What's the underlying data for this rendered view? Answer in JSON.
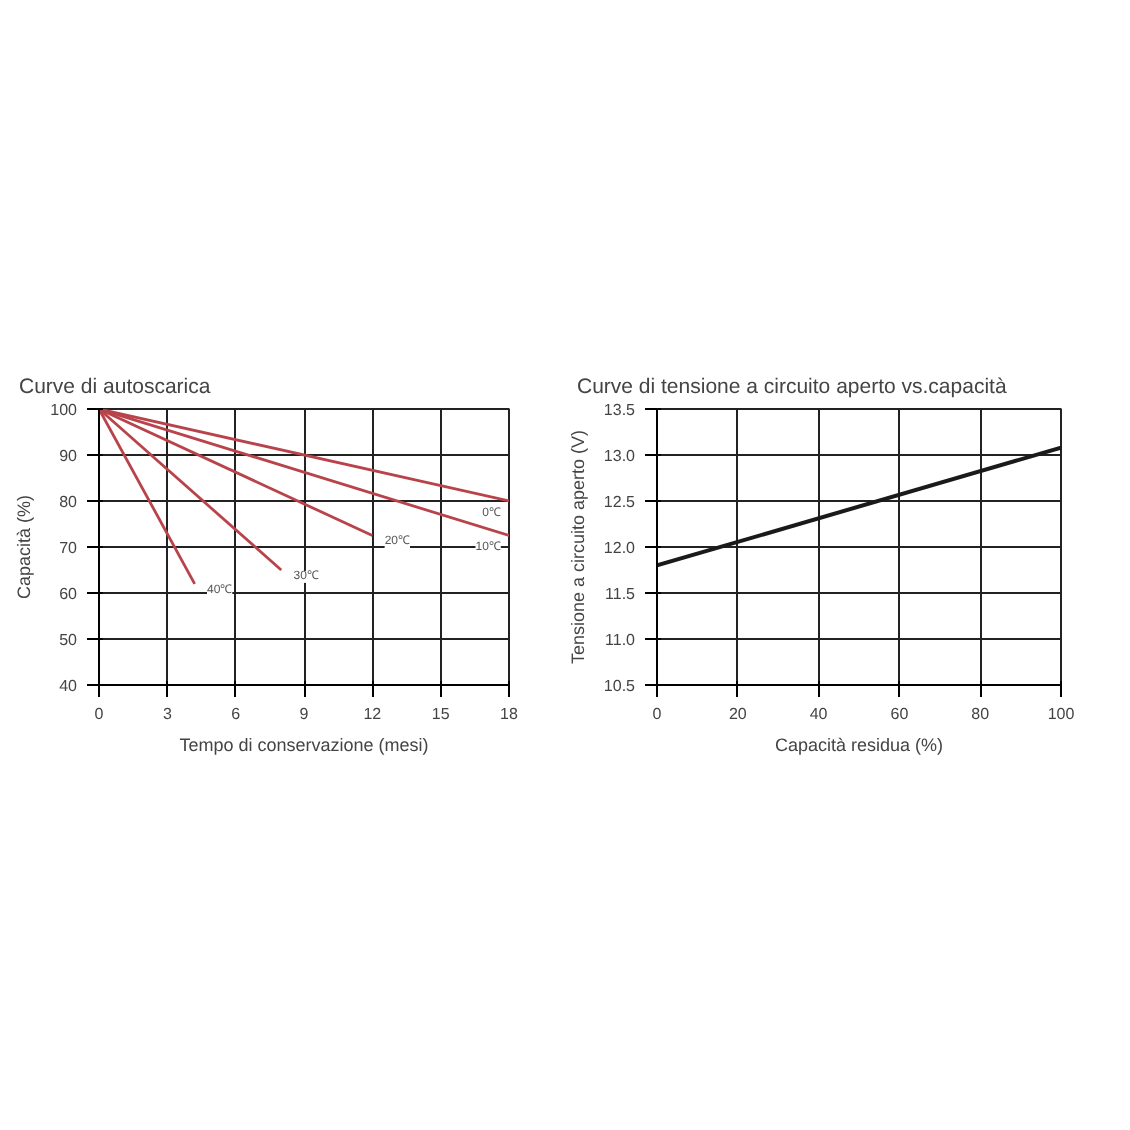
{
  "chart_data": [
    {
      "type": "line",
      "title": "Curve di autoscarica",
      "xlabel": "Tempo di conservazione (mesi)",
      "ylabel": "Capacità (%)",
      "xlim": [
        0,
        18
      ],
      "ylim": [
        40,
        100
      ],
      "xticks": [
        0,
        3,
        6,
        9,
        12,
        15,
        18
      ],
      "yticks": [
        40,
        50,
        60,
        70,
        80,
        90,
        100
      ],
      "grid": true,
      "marker": "none",
      "line_style": "solid",
      "series": [
        {
          "name": "0℃",
          "color": "#b8434a",
          "x": [
            0,
            18
          ],
          "values": [
            100,
            80
          ]
        },
        {
          "name": "10℃",
          "color": "#b8434a",
          "x": [
            0,
            18
          ],
          "values": [
            100,
            72.5
          ]
        },
        {
          "name": "20℃",
          "color": "#b8434a",
          "x": [
            0,
            12
          ],
          "values": [
            100,
            72.5
          ]
        },
        {
          "name": "30℃",
          "color": "#b8434a",
          "x": [
            0,
            8
          ],
          "values": [
            100,
            65
          ]
        },
        {
          "name": "40℃",
          "color": "#b8434a",
          "x": [
            0,
            4.2
          ],
          "values": [
            100,
            62
          ]
        }
      ]
    },
    {
      "type": "line",
      "title": "Curve di tensione a circuito aperto vs.capacità",
      "xlabel": "Capacità residua (%)",
      "ylabel": "Tensione a circuito aperto (V)",
      "xlim": [
        0,
        100
      ],
      "ylim": [
        10.5,
        13.5
      ],
      "xticks": [
        0,
        20,
        40,
        60,
        80,
        100
      ],
      "yticks": [
        10.5,
        {
          "value": 11,
          "label": "11.0"
        },
        11.5,
        {
          "value": 12,
          "label": "12.0"
        },
        12.5,
        {
          "value": 13,
          "label": "13.0"
        },
        13.5
      ],
      "grid": true,
      "marker": "none",
      "line_style": "solid",
      "series": [
        {
          "color": "#1a1a1a",
          "x": [
            0,
            100
          ],
          "values": [
            11.8,
            13.08
          ]
        }
      ]
    }
  ]
}
